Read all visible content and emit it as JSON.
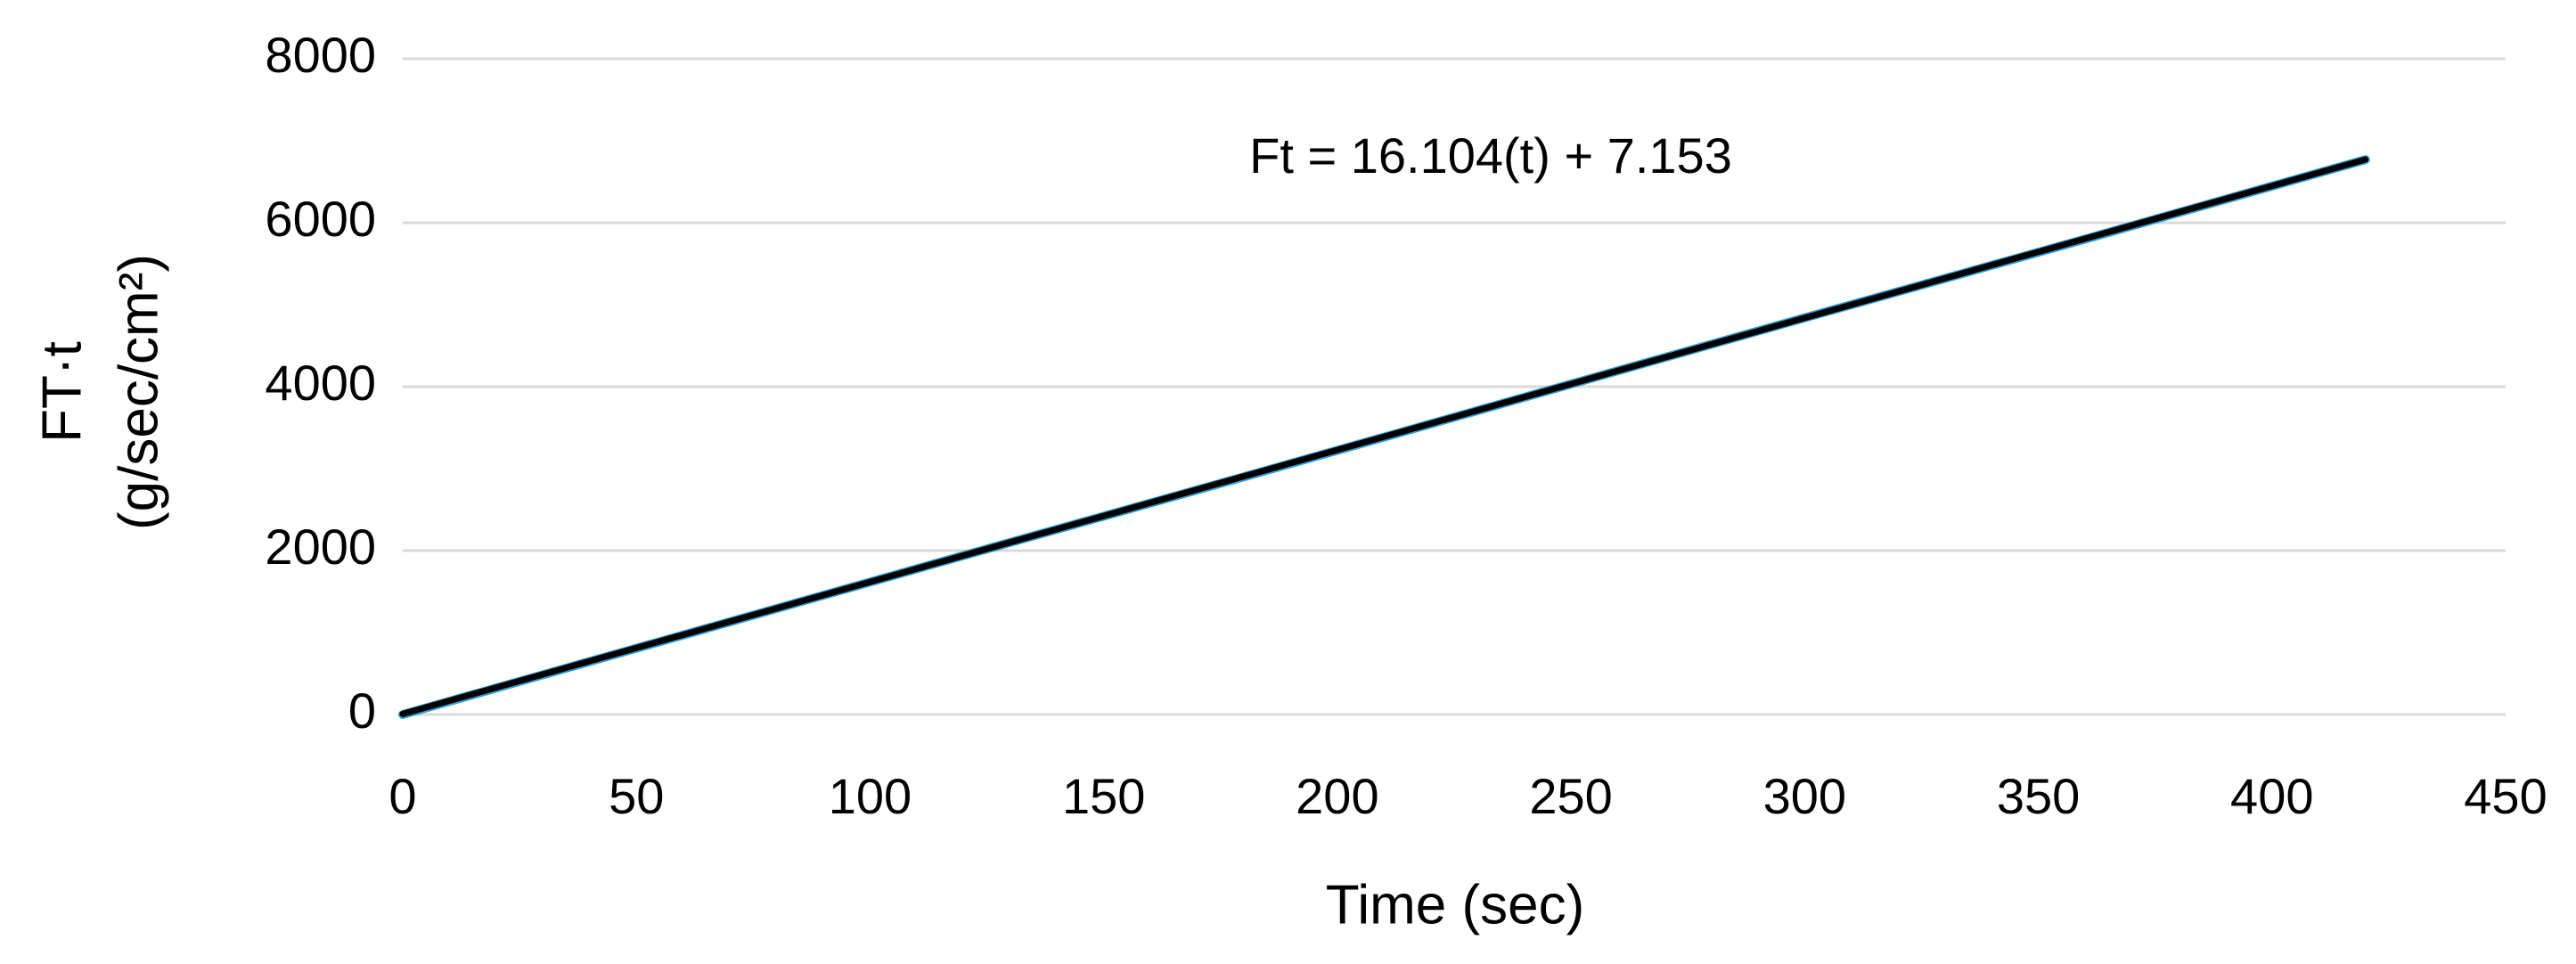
{
  "chart_data": {
    "type": "line",
    "title": null,
    "x_label": "Time (sec)",
    "y_label_lines": [
      "FT·t",
      "(g/sec/cm²)"
    ],
    "annotation": "Ft = 16.104(t) + 7.153",
    "x": [
      0,
      60,
      120,
      180,
      240,
      300,
      360,
      420
    ],
    "series": [
      {
        "color": "#2e9fd8",
        "values": [
          0,
          970,
          1940,
          2900,
          3870,
          4840,
          5800,
          6770
        ]
      },
      {
        "color": "#000000",
        "values": [
          7,
          973,
          1940,
          2906,
          3872,
          4838,
          5805,
          6771
        ]
      }
    ],
    "xlim": [
      0,
      450
    ],
    "xticks": [
      0,
      50,
      100,
      150,
      200,
      250,
      300,
      350,
      400,
      450
    ],
    "ylim": [
      0,
      8000
    ],
    "yticks": [
      0,
      2000,
      4000,
      6000,
      8000
    ],
    "grid": true
  }
}
